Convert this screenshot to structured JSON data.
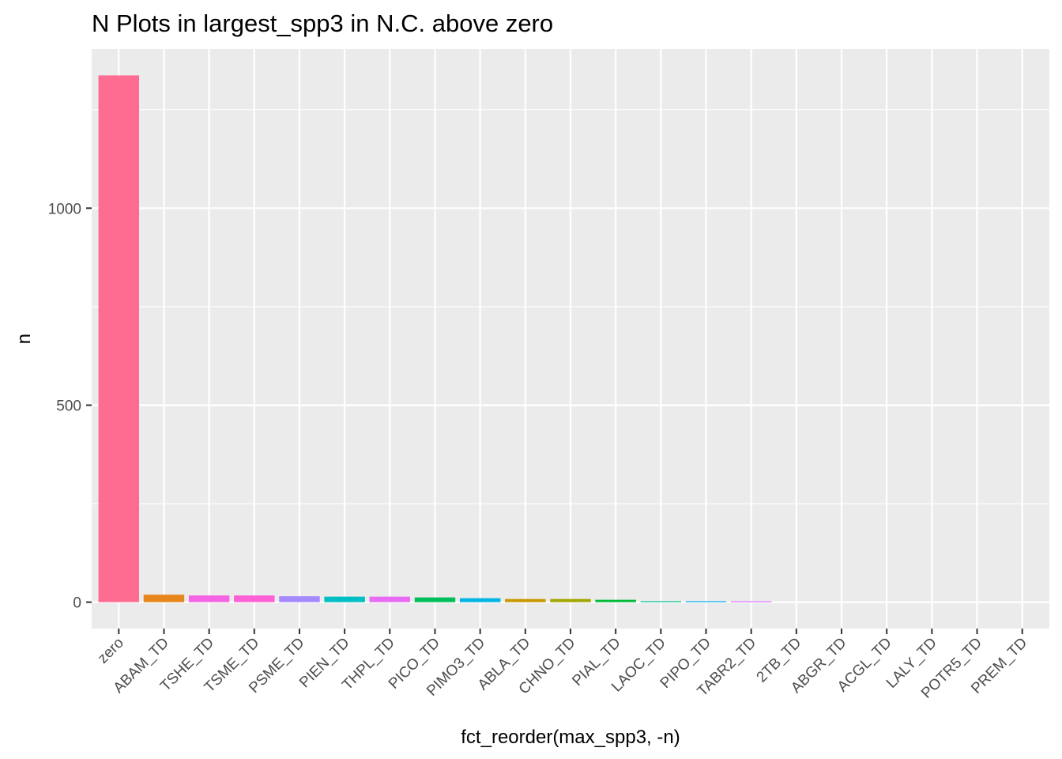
{
  "chart_data": {
    "type": "bar",
    "title": "N Plots in largest_spp3 in N.C. above zero",
    "xlabel": "fct_reorder(max_spp3, -n)",
    "ylabel": "n",
    "categories": [
      "zero",
      "ABAM_TD",
      "TSHE_TD",
      "TSME_TD",
      "PSME_TD",
      "PIEN_TD",
      "THPL_TD",
      "PICO_TD",
      "PIMO3_TD",
      "ABLA_TD",
      "CHNO_TD",
      "PIAL_TD",
      "LAOC_TD",
      "PIPO_TD",
      "TABR2_TD",
      "2TB_TD",
      "ABGR_TD",
      "ACGL_TD",
      "LALY_TD",
      "POTR5_TD",
      "PREM_TD"
    ],
    "values": [
      1337,
      19,
      17,
      17,
      15,
      14,
      14,
      12,
      10,
      8,
      8,
      6,
      2,
      2,
      1,
      0,
      0,
      0,
      0,
      0,
      0
    ],
    "colors": [
      "#FF6C91",
      "#E7861B",
      "#F564E3",
      "#FC61D5",
      "#A58AFF",
      "#00BFC4",
      "#E76BF3",
      "#00BC59",
      "#00B4E4",
      "#C99800",
      "#A3A500",
      "#00BA38",
      "#00C094",
      "#00B0F6",
      "#D575FE",
      "#F8766D",
      "#F8766D",
      "#F8766D",
      "#F8766D",
      "#F8766D",
      "#F8766D"
    ],
    "yticks": [
      0,
      500,
      1000
    ],
    "ylim": [
      -67,
      1404
    ],
    "grid": true,
    "legend": "none",
    "panel_background": "#EBEBEB",
    "grid_color": "#FFFFFF"
  }
}
